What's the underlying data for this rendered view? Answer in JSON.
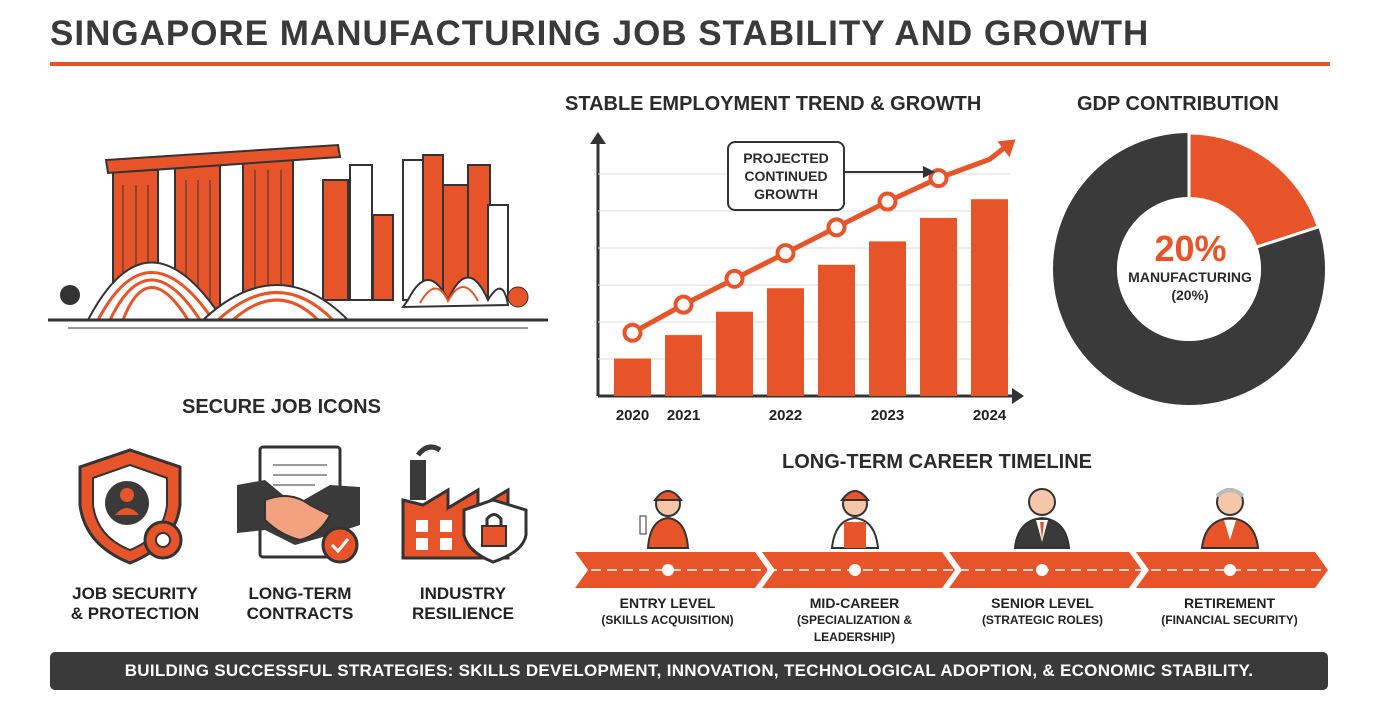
{
  "title": "SINGAPORE MANUFACTURING JOB STABILITY AND GROWTH",
  "colors": {
    "accent": "#e8542a",
    "dark": "#3a3a3a"
  },
  "employment_chart": {
    "heading": "STABLE EMPLOYMENT TREND & GROWTH",
    "callout": [
      "PROJECTED",
      "CONTINUED",
      "GROWTH"
    ]
  },
  "gdp": {
    "heading": "GDP CONTRIBUTION",
    "percent": "20%",
    "label": "MANUFACTURING",
    "sub": "(20%)"
  },
  "secure_jobs": {
    "heading": "SECURE JOB ICONS",
    "items": [
      {
        "icon": "shield-gear-icon",
        "line1": "JOB SECURITY",
        "line2": "& PROTECTION"
      },
      {
        "icon": "handshake-contract-icon",
        "line1": "LONG-TERM",
        "line2": "CONTRACTS"
      },
      {
        "icon": "factory-lock-icon",
        "line1": "INDUSTRY",
        "line2": "RESILIENCE"
      }
    ]
  },
  "timeline": {
    "heading": "LONG-TERM CAREER TIMELINE",
    "stages": [
      {
        "icon": "young-worker-icon",
        "title": "ENTRY LEVEL",
        "sub": "(SKILLS ACQUISITION)"
      },
      {
        "icon": "worker-icon",
        "title": "MID-CAREER",
        "sub": "(SPECIALIZATION &",
        "sub2": "LEADERSHIP)"
      },
      {
        "icon": "manager-icon",
        "title": "SENIOR LEVEL",
        "sub": "(STRATEGIC ROLES)"
      },
      {
        "icon": "retiree-icon",
        "title": "RETIREMENT",
        "sub": "(FINANCIAL SECURITY)"
      }
    ]
  },
  "footer": "BUILDING SUCCESSFUL STRATEGIES: SKILLS DEVELOPMENT, INNOVATION, TECHNOLOGICAL ADOPTION, & ECONOMIC STABILITY.",
  "chart_data": {
    "type": "bar",
    "categories": [
      "2020",
      "2021",
      "",
      "2022",
      "",
      "2023",
      "",
      "2024"
    ],
    "values": [
      1.6,
      2.6,
      3.6,
      4.6,
      5.6,
      6.6,
      7.6,
      8.4
    ],
    "trend": [
      2.7,
      3.9,
      5.0,
      6.1,
      7.2,
      8.3,
      9.3,
      10.1
    ],
    "ylim": [
      0,
      10.5
    ],
    "grid": true
  }
}
